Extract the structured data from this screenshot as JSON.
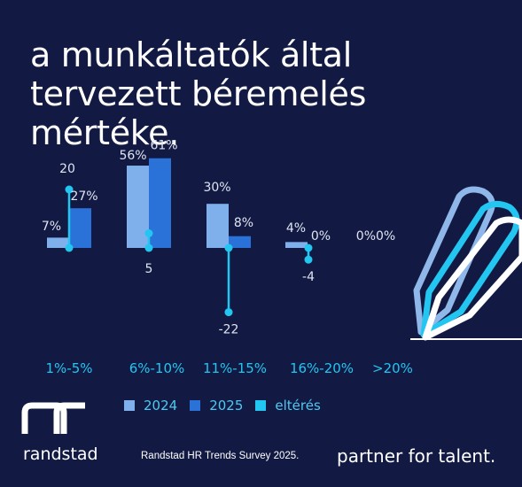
{
  "title": "a munkáltatók által tervezett béremelés mértéke.",
  "brand": {
    "logo_text": "randstad",
    "source": "Randstad HR Trends Survey 2025.",
    "tagline": "partner for talent."
  },
  "colors": {
    "background": "#121a43",
    "series_2024": "#7fb0ec",
    "series_2025": "#2b72d8",
    "difference": "#22c6f0",
    "category_label": "#22c6f0",
    "value_label": "#dfe4f2"
  },
  "chart_data": {
    "type": "bar",
    "categories": [
      "1%-5%",
      "6%-10%",
      "11%-15%",
      "16%-20%",
      ">20%"
    ],
    "series": [
      {
        "name": "2024",
        "values": [
          7,
          56,
          30,
          4,
          0
        ],
        "value_labels": [
          "7%",
          "56%",
          "30%",
          "4%",
          "0%"
        ]
      },
      {
        "name": "2025",
        "values": [
          27,
          61,
          8,
          0,
          0
        ],
        "value_labels": [
          "27%",
          "61%",
          "8%",
          "0%",
          "0%"
        ]
      },
      {
        "name": "eltérés",
        "values": [
          20,
          5,
          -22,
          -4,
          0
        ],
        "value_labels": [
          "20",
          "5",
          "-22",
          "-4",
          ""
        ]
      }
    ],
    "legend": [
      "2024",
      "2025",
      "eltérés"
    ],
    "legend_position": "bottom",
    "ylim": [
      -25,
      65
    ],
    "grid": false
  }
}
